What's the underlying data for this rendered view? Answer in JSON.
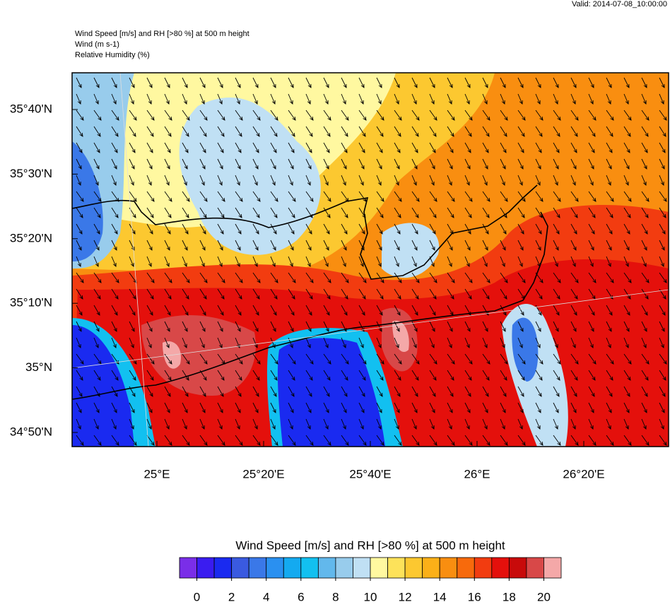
{
  "header": {
    "valid": "Valid: 2014-07-08_10:00:00",
    "title": "Wind Speed [m/s] and RH [>80 %] at 500 m height",
    "wind_line": "Wind   (m s-1)",
    "rh_line": "Relative Humidity   (%)"
  },
  "map": {
    "lat_labels": [
      "35°40'N",
      "35°30'N",
      "35°20'N",
      "35°10'N",
      "35°N",
      "34°50'N"
    ],
    "lon_labels": [
      "25°E",
      "25°20'E",
      "25°40'E",
      "26°E",
      "26°20'E"
    ]
  },
  "colorbar": {
    "title": "Wind Speed [m/s] and RH [>80 %] at 500 m height",
    "range": [
      -1,
      21
    ],
    "ticks": [
      0,
      2,
      4,
      6,
      8,
      10,
      12,
      14,
      16,
      18,
      20
    ],
    "colors": [
      "#7a2ee8",
      "#3a1cf0",
      "#1a2af0",
      "#3a5ae0",
      "#3a78e8",
      "#2a90f0",
      "#14aaf0",
      "#12c0f0",
      "#62b8ec",
      "#98ccec",
      "#c0e0f4",
      "#fff8a0",
      "#fde25a",
      "#fcc830",
      "#fbb018",
      "#f98e10",
      "#f76a0c",
      "#f23c10",
      "#e4100c",
      "#c80a0a",
      "#d84848",
      "#f4a8a8"
    ]
  }
}
